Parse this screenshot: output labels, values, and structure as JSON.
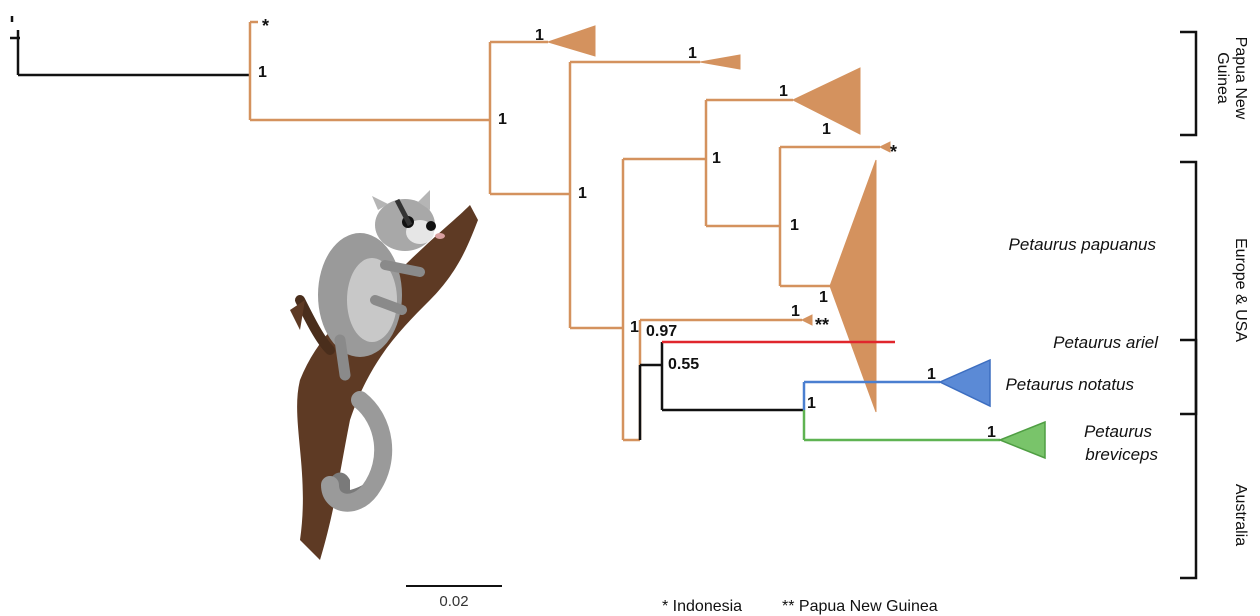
{
  "support_values": {
    "top_outgroup": "1",
    "png_clade": "1",
    "top_collapsed": "1",
    "papuanus_root": "1",
    "png_sub": "1",
    "papuanus_group": "1",
    "upper_png_clade": "1",
    "upper_png_tip": "1",
    "mid_clade": "1",
    "large_clade": "1",
    "large_tip": "1",
    "png_double_tip": "1",
    "ariel_node": "0.97",
    "aust_node": "0.55",
    "notatus_node": "1",
    "notatus_tip": "1",
    "breviceps_tip": "1"
  },
  "markers": {
    "indonesia_single": "*",
    "png_single": "*",
    "png_double": "**"
  },
  "taxa": {
    "papuanus": "Petaurus papuanus",
    "ariel": "Petaurus ariel",
    "notatus": "Petaurus notatus",
    "breviceps_line1": "Petaurus",
    "breviceps_line2": "breviceps"
  },
  "regions": {
    "png_line1": "Papua New",
    "png_line2": "Guinea",
    "europe_usa": "Europe & USA",
    "australia": "Australia"
  },
  "legend": {
    "single_star": "* Indonesia",
    "double_star": "** Papua New Guinea"
  },
  "scale_bar": {
    "label": "0.02"
  },
  "colors": {
    "papuanus": "#d4925e",
    "ariel": "#e0262c",
    "notatus": "#4a7fd0",
    "breviceps": "#5fb352",
    "backbone": "#111111"
  }
}
